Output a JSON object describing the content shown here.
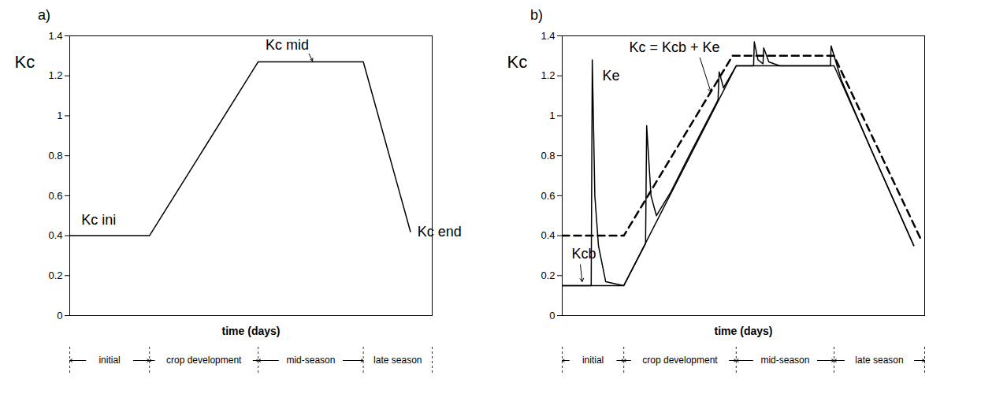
{
  "chart_data": [
    {
      "type": "line",
      "panel_label": "a)",
      "ylabel": "Kc",
      "xlabel": "time (days)",
      "xlim": [
        0,
        100
      ],
      "ylim": [
        0,
        1.4
      ],
      "yticks": [
        0,
        0.2,
        0.4,
        0.6,
        0.8,
        1,
        1.2,
        1.4
      ],
      "tick_labels": "y",
      "grid": false,
      "series": [
        {
          "name": "Kc",
          "color": "#000000",
          "line_style": "solid",
          "x": [
            0,
            22,
            52,
            81,
            94
          ],
          "values": [
            0.4,
            0.4,
            1.27,
            1.27,
            0.42
          ]
        }
      ],
      "annotations": [
        {
          "text": "Kc ini",
          "x": 8,
          "y": 0.48
        },
        {
          "text": "Kc mid",
          "x": 60,
          "y": 1.355,
          "arrow_from": [
            66,
            1.31
          ],
          "arrow_to": [
            67,
            1.275
          ]
        },
        {
          "text": "Kc end",
          "x": 102,
          "y": 0.42
        }
      ],
      "stages": {
        "labels": [
          "initial",
          "crop development",
          "mid-season",
          "late season"
        ],
        "bounds": [
          0,
          22,
          52,
          81,
          100
        ]
      }
    },
    {
      "type": "line",
      "panel_label": "b)",
      "ylabel": "Kc",
      "xlabel": "time (days)",
      "xlim": [
        0,
        100
      ],
      "ylim": [
        0,
        1.4
      ],
      "yticks": [
        0,
        0.2,
        0.4,
        0.6,
        0.8,
        1,
        1.2,
        1.4
      ],
      "tick_labels": "y",
      "grid": false,
      "series": [
        {
          "name": "Kcb",
          "color": "#000000",
          "line_style": "solid",
          "x": [
            0,
            17,
            48,
            75,
            97
          ],
          "values": [
            0.15,
            0.15,
            1.25,
            1.25,
            0.35
          ]
        },
        {
          "name": "Kc = Kcb + Ke",
          "color": "#000000",
          "line_style": "dashed",
          "x": [
            0,
            17,
            47,
            75,
            99
          ],
          "values": [
            0.4,
            0.4,
            1.3,
            1.3,
            0.38
          ]
        },
        {
          "name": "Ke",
          "color": "#000000",
          "line_style": "solid",
          "x": [
            0,
            8,
            8.3,
            9,
            10,
            12,
            17,
            23,
            23.3,
            24.5,
            26,
            30,
            35,
            41,
            43,
            43.3,
            44.5,
            48,
            52.8,
            53,
            54,
            55.4,
            55.6,
            57,
            60,
            74,
            74.2,
            75.5,
            77,
            85,
            97
          ],
          "values": [
            0.15,
            0.15,
            1.28,
            0.6,
            0.35,
            0.17,
            0.15,
            0.36,
            0.95,
            0.6,
            0.5,
            0.62,
            0.8,
            1.01,
            1.08,
            1.22,
            1.14,
            1.25,
            1.25,
            1.37,
            1.28,
            1.26,
            1.34,
            1.27,
            1.25,
            1.25,
            1.35,
            1.27,
            1.18,
            0.84,
            0.35
          ]
        }
      ],
      "annotations": [
        {
          "text": "Kc = Kcb + Ke",
          "x": 31,
          "y": 1.34,
          "arrow_from": [
            38,
            1.29
          ],
          "arrow_to": [
            41,
            1.12
          ]
        },
        {
          "text": "Ke",
          "x": 13.5,
          "y": 1.2
        },
        {
          "text": "Kcb",
          "x": 6,
          "y": 0.31,
          "arrow_from": [
            5,
            0.255
          ],
          "arrow_to": [
            5.5,
            0.17
          ]
        }
      ],
      "stages": {
        "labels": [
          "initial",
          "crop development",
          "mid-season",
          "late season"
        ],
        "bounds": [
          0,
          17,
          48,
          75,
          100
        ]
      }
    }
  ]
}
